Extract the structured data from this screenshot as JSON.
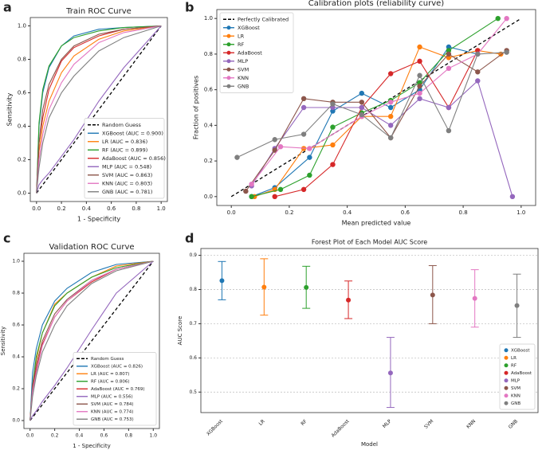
{
  "chart_data": [
    {
      "type": "line",
      "panel": "a",
      "title": "Train ROC Curve",
      "x_label": "1 - Specificity",
      "y_label": "Sensitivity",
      "xlim": [
        -0.05,
        1.05
      ],
      "ylim": [
        -0.05,
        1.05
      ],
      "xticks": [
        {
          "value": 0,
          "label": "0.0"
        },
        0.2,
        0.4,
        0.6,
        0.8,
        {
          "value": 1,
          "label": "1.0"
        }
      ],
      "yticks": [
        {
          "value": 0,
          "label": "0.0"
        },
        0.2,
        0.4,
        0.6,
        0.8,
        {
          "value": 1,
          "label": "1.0"
        }
      ],
      "legend": "lower right",
      "markers": false,
      "x": [
        0,
        0.02,
        0.05,
        0.1,
        0.2,
        0.3,
        0.5,
        0.7,
        1
      ],
      "series": [
        {
          "name": "Random Guess",
          "color": "#000000",
          "linestyle": "dashed",
          "x": [
            0,
            1
          ],
          "values": [
            0,
            1
          ]
        },
        {
          "name": "XGBoost (AUC = 0.900)",
          "color": "#1f77b4",
          "values": [
            0,
            0.4,
            0.6,
            0.75,
            0.88,
            0.94,
            0.98,
            0.99,
            1
          ]
        },
        {
          "name": "LR (AUC = 0.836)",
          "color": "#ff7f0e",
          "values": [
            0,
            0.25,
            0.4,
            0.55,
            0.72,
            0.82,
            0.92,
            0.97,
            1
          ]
        },
        {
          "name": "RF (AUC = 0.899)",
          "color": "#2ca02c",
          "values": [
            0,
            0.42,
            0.62,
            0.76,
            0.88,
            0.93,
            0.97,
            0.99,
            1
          ]
        },
        {
          "name": "AdaBoost (AUC = 0.856)",
          "color": "#d62728",
          "values": [
            0,
            0.3,
            0.45,
            0.62,
            0.79,
            0.87,
            0.94,
            0.98,
            1
          ]
        },
        {
          "name": "MLP (AUC = 0.548)",
          "color": "#9467bd",
          "values": [
            0,
            0.05,
            0.08,
            0.12,
            0.22,
            0.32,
            0.55,
            0.75,
            1
          ]
        },
        {
          "name": "SVM (AUC = 0.863)",
          "color": "#8c564b",
          "values": [
            0,
            0.3,
            0.5,
            0.65,
            0.8,
            0.88,
            0.95,
            0.98,
            1
          ]
        },
        {
          "name": "KNN (AUC = 0.803)",
          "color": "#e377c2",
          "values": [
            0,
            0.2,
            0.35,
            0.5,
            0.66,
            0.77,
            0.9,
            0.96,
            1
          ]
        },
        {
          "name": "GNB (AUC = 0.781)",
          "color": "#7f7f7f",
          "values": [
            0,
            0.15,
            0.3,
            0.45,
            0.6,
            0.7,
            0.85,
            0.93,
            1
          ]
        }
      ]
    },
    {
      "type": "line",
      "panel": "b",
      "title": "Calibration plots (reliability curve)",
      "x_label": "Mean predicted value",
      "y_label": "Fraction of positives",
      "xlim": [
        -0.05,
        1.05
      ],
      "ylim": [
        -0.05,
        1.05
      ],
      "xticks": [
        {
          "value": 0,
          "label": "0.0"
        },
        0.2,
        0.4,
        0.6,
        0.8,
        {
          "value": 1,
          "label": "1.0"
        }
      ],
      "yticks": [
        {
          "value": 0,
          "label": "0.0"
        },
        0.2,
        0.4,
        0.6,
        0.8,
        {
          "value": 1,
          "label": "1.0"
        }
      ],
      "legend": "upper left",
      "markers": true,
      "series": [
        {
          "name": "Perfectly Calibrated",
          "color": "#000000",
          "linestyle": "dashed",
          "markers": false,
          "x": [
            0,
            1
          ],
          "values": [
            0,
            1
          ]
        },
        {
          "name": "XGBoost",
          "color": "#1f77b4",
          "x": [
            0.07,
            0.15,
            0.27,
            0.35,
            0.45,
            0.55,
            0.65,
            0.75,
            0.85
          ],
          "values": [
            0,
            0.05,
            0.22,
            0.48,
            0.58,
            0.5,
            0.6,
            0.84,
            0.8
          ]
        },
        {
          "name": "LR",
          "color": "#ff7f0e",
          "x": [
            0.08,
            0.15,
            0.25,
            0.35,
            0.45,
            0.55,
            0.65,
            0.75,
            0.85,
            0.93
          ],
          "values": [
            0,
            0.04,
            0.27,
            0.29,
            0.45,
            0.45,
            0.84,
            0.78,
            0.82,
            0.8
          ]
        },
        {
          "name": "RF",
          "color": "#2ca02c",
          "x": [
            0.07,
            0.17,
            0.27,
            0.35,
            0.45,
            0.55,
            0.65,
            0.75,
            0.92
          ],
          "values": [
            0,
            0.04,
            0.12,
            0.39,
            0.47,
            0.54,
            0.64,
            0.82,
            1
          ]
        },
        {
          "name": "AdaBoost",
          "color": "#d62728",
          "x": [
            0.15,
            0.25,
            0.35,
            0.45,
            0.55,
            0.65,
            0.75,
            0.85
          ],
          "values": [
            0,
            0.04,
            0.18,
            0.5,
            0.69,
            0.76,
            0.5,
            0.82
          ]
        },
        {
          "name": "MLP",
          "color": "#9467bd",
          "x": [
            0.07,
            0.15,
            0.25,
            0.35,
            0.45,
            0.55,
            0.65,
            0.75,
            0.85,
            0.97
          ],
          "values": [
            0.06,
            0.27,
            0.5,
            0.5,
            0.5,
            0.4,
            0.55,
            0.5,
            0.65,
            0
          ]
        },
        {
          "name": "SVM",
          "color": "#8c564b",
          "x": [
            0.05,
            0.15,
            0.25,
            0.35,
            0.45,
            0.55,
            0.65,
            0.75,
            0.85,
            0.95
          ],
          "values": [
            0.03,
            0.26,
            0.55,
            0.53,
            0.53,
            0.33,
            0.62,
            0.8,
            0.7,
            0.82
          ]
        },
        {
          "name": "KNN",
          "color": "#e377c2",
          "x": [
            0.07,
            0.17,
            0.27,
            0.45,
            0.55,
            0.65,
            0.75,
            0.85,
            0.95
          ],
          "values": [
            0.07,
            0.28,
            0.27,
            0.45,
            0.53,
            0.58,
            0.72,
            0.8,
            1
          ]
        },
        {
          "name": "GNB",
          "color": "#7f7f7f",
          "x": [
            0.02,
            0.15,
            0.25,
            0.35,
            0.45,
            0.55,
            0.65,
            0.75,
            0.85,
            0.95
          ],
          "values": [
            0.22,
            0.32,
            0.35,
            0.52,
            0.46,
            0.33,
            0.68,
            0.37,
            0.8,
            0.81
          ]
        }
      ]
    },
    {
      "type": "line",
      "panel": "c",
      "title": "Validation ROC Curve",
      "x_label": "1 - Specificity",
      "y_label": "Sensitivity",
      "xlim": [
        -0.05,
        1.05
      ],
      "ylim": [
        -0.05,
        1.05
      ],
      "xticks": [
        {
          "value": 0,
          "label": "0.0"
        },
        0.2,
        0.4,
        0.6,
        0.8,
        {
          "value": 1,
          "label": "1.0"
        }
      ],
      "yticks": [
        {
          "value": 0,
          "label": "0.0"
        },
        0.2,
        0.4,
        0.6,
        0.8,
        {
          "value": 1,
          "label": "1.0"
        }
      ],
      "legend": "lower right",
      "markers": false,
      "x": [
        0,
        0.02,
        0.05,
        0.1,
        0.2,
        0.3,
        0.5,
        0.7,
        1
      ],
      "series": [
        {
          "name": "Random Guess",
          "color": "#000000",
          "linestyle": "dashed",
          "x": [
            0,
            1
          ],
          "values": [
            0,
            1
          ]
        },
        {
          "name": "XGBoost (AUC = 0.826)",
          "color": "#1f77b4",
          "values": [
            0,
            0.3,
            0.45,
            0.6,
            0.75,
            0.83,
            0.93,
            0.98,
            1
          ]
        },
        {
          "name": "LR (AUC = 0.807)",
          "color": "#ff7f0e",
          "values": [
            0,
            0.2,
            0.38,
            0.55,
            0.73,
            0.8,
            0.9,
            0.97,
            1
          ]
        },
        {
          "name": "RF (AUC = 0.806)",
          "color": "#2ca02c",
          "values": [
            0,
            0.22,
            0.4,
            0.55,
            0.72,
            0.8,
            0.9,
            0.96,
            1
          ]
        },
        {
          "name": "AdaBoost (AUC = 0.769)",
          "color": "#d62728",
          "values": [
            0,
            0.2,
            0.32,
            0.48,
            0.65,
            0.75,
            0.87,
            0.95,
            1
          ]
        },
        {
          "name": "MLP (AUC = 0.556)",
          "color": "#9467bd",
          "values": [
            0,
            0.03,
            0.06,
            0.12,
            0.22,
            0.33,
            0.57,
            0.8,
            1
          ]
        },
        {
          "name": "SVM (AUC = 0.784)",
          "color": "#8c564b",
          "values": [
            0,
            0.22,
            0.35,
            0.5,
            0.67,
            0.76,
            0.88,
            0.95,
            1
          ]
        },
        {
          "name": "KNN (AUC = 0.774)",
          "color": "#e377c2",
          "values": [
            0,
            0.18,
            0.3,
            0.47,
            0.65,
            0.75,
            0.88,
            0.95,
            1
          ]
        },
        {
          "name": "GNB (AUC = 0.753)",
          "color": "#7f7f7f",
          "values": [
            0,
            0.15,
            0.28,
            0.43,
            0.6,
            0.72,
            0.86,
            0.94,
            1
          ]
        }
      ]
    },
    {
      "type": "errorbar",
      "panel": "d",
      "title": "Forest Plot of Each Model AUC Score",
      "x_label": "Model",
      "y_label": "AUC Score",
      "ylim": [
        0.44,
        0.92
      ],
      "yticks": [
        0.5,
        0.6,
        0.7,
        0.8,
        0.9
      ],
      "grid": true,
      "legend": "lower right",
      "categories": [
        "XGBoost",
        "LR",
        "RF",
        "AdaBoost",
        "MLP",
        "SVM",
        "KNN",
        "GNB"
      ],
      "values": [
        0.826,
        0.807,
        0.806,
        0.769,
        0.556,
        0.784,
        0.774,
        0.753
      ],
      "lower": [
        0.77,
        0.725,
        0.745,
        0.715,
        0.455,
        0.7,
        0.69,
        0.66
      ],
      "upper": [
        0.882,
        0.89,
        0.868,
        0.825,
        0.66,
        0.87,
        0.858,
        0.845
      ],
      "colors": [
        "#1f77b4",
        "#ff7f0e",
        "#2ca02c",
        "#d62728",
        "#9467bd",
        "#8c564b",
        "#e377c2",
        "#7f7f7f"
      ]
    }
  ]
}
